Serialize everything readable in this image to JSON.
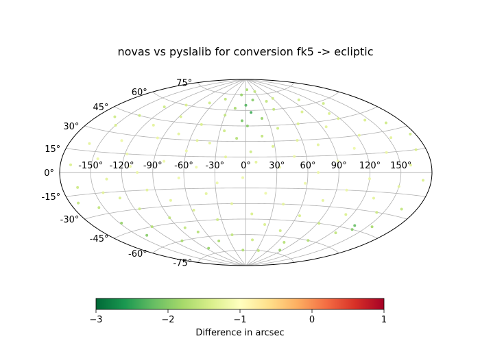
{
  "chart_data": {
    "type": "scatter",
    "projection": "aitoff",
    "title": "novas vs pyslalib for conversion fk5 -> ecliptic",
    "grid": true,
    "x_ticks": [
      "-150°",
      "-120°",
      "-90°",
      "-60°",
      "-30°",
      "0°",
      "30°",
      "60°",
      "90°",
      "120°",
      "150°"
    ],
    "x_tick_values": [
      -150,
      -120,
      -90,
      -60,
      -30,
      0,
      30,
      60,
      90,
      120,
      150
    ],
    "y_ticks": [
      "-75°",
      "-60°",
      "-45°",
      "-30°",
      "-15°",
      "0°",
      "15°",
      "30°",
      "45°",
      "60°",
      "75°"
    ],
    "y_tick_values": [
      -75,
      -60,
      -45,
      -30,
      -15,
      0,
      15,
      30,
      45,
      60,
      75
    ],
    "colorbar": {
      "label": "Difference in arcsec",
      "range": [
        -3,
        1
      ],
      "ticks": [
        "−3",
        "−2",
        "−1",
        "0",
        "1"
      ],
      "tick_values": [
        -3,
        -2,
        -1,
        0,
        1
      ],
      "colormap": "RdYlGn_r",
      "colors": [
        "#006837",
        "#1a9850",
        "#66bd63",
        "#a6d96a",
        "#d9ef8b",
        "#ffffbf",
        "#fee08b",
        "#fdae61",
        "#f46d43",
        "#d73027",
        "#a50026"
      ]
    },
    "points": [
      {
        "lon": -170,
        "lat": 5,
        "diff": -1.4
      },
      {
        "lon": -165,
        "lat": -10,
        "diff": -1.5
      },
      {
        "lon": -160,
        "lat": 20,
        "diff": -1.3
      },
      {
        "lon": -155,
        "lat": -25,
        "diff": -1.6
      },
      {
        "lon": -150,
        "lat": 35,
        "diff": -1.4
      },
      {
        "lon": -148,
        "lat": -38,
        "diff": -1.9
      },
      {
        "lon": -145,
        "lat": 10,
        "diff": -1.2
      },
      {
        "lon": -140,
        "lat": -50,
        "diff": -2.0
      },
      {
        "lon": -138,
        "lat": 45,
        "diff": -1.5
      },
      {
        "lon": -135,
        "lat": -5,
        "diff": -1.3
      },
      {
        "lon": -130,
        "lat": 25,
        "diff": -1.2
      },
      {
        "lon": -128,
        "lat": -20,
        "diff": -1.4
      },
      {
        "lon": -125,
        "lat": 55,
        "diff": -1.5
      },
      {
        "lon": -120,
        "lat": -45,
        "diff": -1.7
      },
      {
        "lon": -118,
        "lat": 15,
        "diff": -1.2
      },
      {
        "lon": -115,
        "lat": -30,
        "diff": -1.5
      },
      {
        "lon": -110,
        "lat": 40,
        "diff": -1.3
      },
      {
        "lon": -108,
        "lat": -60,
        "diff": -1.8
      },
      {
        "lon": -105,
        "lat": 0,
        "diff": -1.2
      },
      {
        "lon": -100,
        "lat": 60,
        "diff": -1.4
      },
      {
        "lon": -98,
        "lat": -15,
        "diff": -1.3
      },
      {
        "lon": -95,
        "lat": 30,
        "diff": -1.2
      },
      {
        "lon": -90,
        "lat": -40,
        "diff": -1.6
      },
      {
        "lon": -88,
        "lat": 50,
        "diff": -1.4
      },
      {
        "lon": -85,
        "lat": -70,
        "diff": -1.9
      },
      {
        "lon": -80,
        "lat": 10,
        "diff": -1.2
      },
      {
        "lon": -78,
        "lat": -25,
        "diff": -1.3
      },
      {
        "lon": -75,
        "lat": 35,
        "diff": -1.3
      },
      {
        "lon": -70,
        "lat": -55,
        "diff": -1.7
      },
      {
        "lon": -68,
        "lat": 65,
        "diff": -1.5
      },
      {
        "lon": -65,
        "lat": -5,
        "diff": -1.2
      },
      {
        "lon": -60,
        "lat": 20,
        "diff": -1.2
      },
      {
        "lon": -58,
        "lat": -35,
        "diff": -1.4
      },
      {
        "lon": -55,
        "lat": 45,
        "diff": -1.4
      },
      {
        "lon": -50,
        "lat": -65,
        "diff": -1.8
      },
      {
        "lon": -48,
        "lat": 5,
        "diff": -1.2
      },
      {
        "lon": -45,
        "lat": 70,
        "diff": -1.6
      },
      {
        "lon": -40,
        "lat": -20,
        "diff": -1.3
      },
      {
        "lon": -38,
        "lat": 28,
        "diff": -1.3
      },
      {
        "lon": -35,
        "lat": -45,
        "diff": -1.5
      },
      {
        "lon": -30,
        "lat": 55,
        "diff": -1.6
      },
      {
        "lon": -28,
        "lat": -10,
        "diff": -1.2
      },
      {
        "lon": -25,
        "lat": 40,
        "diff": -1.5
      },
      {
        "lon": -22,
        "lat": -60,
        "diff": -1.6
      },
      {
        "lon": -20,
        "lat": 15,
        "diff": -1.3
      },
      {
        "lon": -18,
        "lat": 62,
        "diff": -1.8
      },
      {
        "lon": -15,
        "lat": -30,
        "diff": -1.3
      },
      {
        "lon": -12,
        "lat": 75,
        "diff": -1.9
      },
      {
        "lon": -10,
        "lat": 33,
        "diff": -1.7
      },
      {
        "lon": -8,
        "lat": -75,
        "diff": -1.7
      },
      {
        "lon": -5,
        "lat": 50,
        "diff": -2.1
      },
      {
        "lon": -3,
        "lat": -5,
        "diff": -1.2
      },
      {
        "lon": 0,
        "lat": 65,
        "diff": -2.3
      },
      {
        "lon": 2,
        "lat": 45,
        "diff": -2.0
      },
      {
        "lon": 4,
        "lat": 80,
        "diff": -1.8
      },
      {
        "lon": 5,
        "lat": 20,
        "diff": -1.5
      },
      {
        "lon": 7,
        "lat": -40,
        "diff": -1.4
      },
      {
        "lon": 8,
        "lat": 58,
        "diff": -2.4
      },
      {
        "lon": 10,
        "lat": 10,
        "diff": -1.3
      },
      {
        "lon": 12,
        "lat": -65,
        "diff": -1.5
      },
      {
        "lon": 15,
        "lat": 70,
        "diff": -2.0
      },
      {
        "lon": 18,
        "lat": 35,
        "diff": -1.6
      },
      {
        "lon": 20,
        "lat": -20,
        "diff": -1.2
      },
      {
        "lon": 22,
        "lat": 52,
        "diff": -1.9
      },
      {
        "lon": 25,
        "lat": -50,
        "diff": -1.4
      },
      {
        "lon": 28,
        "lat": 25,
        "diff": -1.4
      },
      {
        "lon": 30,
        "lat": 78,
        "diff": -1.6
      },
      {
        "lon": 33,
        "lat": 5,
        "diff": -1.2
      },
      {
        "lon": 35,
        "lat": -75,
        "diff": -1.6
      },
      {
        "lon": 38,
        "lat": 42,
        "diff": -1.5
      },
      {
        "lon": 40,
        "lat": -30,
        "diff": -1.3
      },
      {
        "lon": 45,
        "lat": 60,
        "diff": -1.6
      },
      {
        "lon": 48,
        "lat": 15,
        "diff": -1.2
      },
      {
        "lon": 50,
        "lat": -55,
        "diff": -1.5
      },
      {
        "lon": 55,
        "lat": 30,
        "diff": -1.3
      },
      {
        "lon": 58,
        "lat": -10,
        "diff": -1.2
      },
      {
        "lon": 60,
        "lat": 70,
        "diff": -1.5
      },
      {
        "lon": 63,
        "lat": -40,
        "diff": -1.4
      },
      {
        "lon": 65,
        "lat": 45,
        "diff": -1.4
      },
      {
        "lon": 70,
        "lat": 0,
        "diff": -1.2
      },
      {
        "lon": 72,
        "lat": -65,
        "diff": -1.7
      },
      {
        "lon": 75,
        "lat": 25,
        "diff": -1.3
      },
      {
        "lon": 80,
        "lat": -25,
        "diff": -1.3
      },
      {
        "lon": 83,
        "lat": 55,
        "diff": -1.4
      },
      {
        "lon": 85,
        "lat": -72,
        "diff": -1.9
      },
      {
        "lon": 90,
        "lat": 10,
        "diff": -1.2
      },
      {
        "lon": 92,
        "lat": -45,
        "diff": -1.5
      },
      {
        "lon": 95,
        "lat": 40,
        "diff": -1.3
      },
      {
        "lon": 100,
        "lat": -15,
        "diff": -1.2
      },
      {
        "lon": 103,
        "lat": 65,
        "diff": -1.5
      },
      {
        "lon": 105,
        "lat": -60,
        "diff": -1.7
      },
      {
        "lon": 110,
        "lat": 20,
        "diff": -1.2
      },
      {
        "lon": 113,
        "lat": -35,
        "diff": -1.4
      },
      {
        "lon": 115,
        "lat": 50,
        "diff": -1.4
      },
      {
        "lon": 120,
        "lat": -5,
        "diff": -1.2
      },
      {
        "lon": 123,
        "lat": 30,
        "diff": -1.3
      },
      {
        "lon": 125,
        "lat": -50,
        "diff": -1.6
      },
      {
        "lon": 128,
        "lat": 58,
        "diff": -1.5
      },
      {
        "lon": 130,
        "lat": -20,
        "diff": -1.3
      },
      {
        "lon": 135,
        "lat": -42,
        "diff": -2.2
      },
      {
        "lon": 138,
        "lat": -45,
        "diff": -2.0
      },
      {
        "lon": 140,
        "lat": 15,
        "diff": -1.2
      },
      {
        "lon": 143,
        "lat": -30,
        "diff": -1.5
      },
      {
        "lon": 145,
        "lat": 40,
        "diff": -1.4
      },
      {
        "lon": 150,
        "lat": -10,
        "diff": -1.3
      },
      {
        "lon": 153,
        "lat": 25,
        "diff": -1.3
      },
      {
        "lon": 155,
        "lat": -40,
        "diff": -1.8
      },
      {
        "lon": 160,
        "lat": 5,
        "diff": -1.3
      },
      {
        "lon": 163,
        "lat": 35,
        "diff": -1.5
      },
      {
        "lon": 165,
        "lat": -25,
        "diff": -1.6
      },
      {
        "lon": 170,
        "lat": 15,
        "diff": -1.4
      },
      {
        "lon": 172,
        "lat": -5,
        "diff": -1.4
      },
      {
        "lon": 175,
        "lat": 25,
        "diff": -1.5
      },
      {
        "lon": -172,
        "lat": -20,
        "diff": -1.6
      },
      {
        "lon": -162,
        "lat": 40,
        "diff": -1.5
      },
      {
        "lon": -142,
        "lat": -15,
        "diff": -1.3
      },
      {
        "lon": -112,
        "lat": 5,
        "diff": -1.2
      },
      {
        "lon": -82,
        "lat": -50,
        "diff": -1.6
      },
      {
        "lon": -52,
        "lat": 30,
        "diff": -1.3
      },
      {
        "lon": 42,
        "lat": 68,
        "diff": -1.6
      },
      {
        "lon": 118,
        "lat": 45,
        "diff": -1.4
      }
    ]
  }
}
